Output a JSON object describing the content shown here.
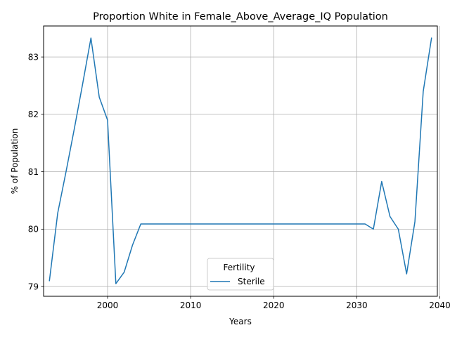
{
  "chart_data": {
    "type": "line",
    "title": "Proportion White in Female_Above_Average_IQ Population",
    "xlabel": "Years",
    "ylabel": "% of Population",
    "xlim": [
      1992.3,
      2039.7
    ],
    "ylim": [
      78.83,
      83.54
    ],
    "xticks": [
      2000,
      2010,
      2020,
      2030,
      2040
    ],
    "yticks": [
      79,
      80,
      81,
      82,
      83
    ],
    "grid": true,
    "legend": {
      "title": "Fertility",
      "placement": "lower-center"
    },
    "series": [
      {
        "name": "Sterile",
        "color": "#1f77b4",
        "x": [
          1993,
          1994,
          1995,
          1996,
          1997,
          1998,
          1999,
          2000,
          2001,
          2002,
          2003,
          2004,
          2005,
          2006,
          2007,
          2008,
          2009,
          2010,
          2011,
          2012,
          2013,
          2014,
          2015,
          2016,
          2017,
          2018,
          2019,
          2020,
          2021,
          2022,
          2023,
          2024,
          2025,
          2026,
          2027,
          2028,
          2029,
          2030,
          2031,
          2032,
          2033,
          2034,
          2035,
          2036,
          2037,
          2038,
          2039
        ],
        "y": [
          79.1,
          80.28,
          81.0,
          81.75,
          82.53,
          83.33,
          82.3,
          81.9,
          79.05,
          79.25,
          79.72,
          80.09,
          80.09,
          80.09,
          80.09,
          80.09,
          80.09,
          80.09,
          80.09,
          80.09,
          80.09,
          80.09,
          80.09,
          80.09,
          80.09,
          80.09,
          80.09,
          80.09,
          80.09,
          80.09,
          80.09,
          80.09,
          80.09,
          80.09,
          80.09,
          80.09,
          80.09,
          80.09,
          80.09,
          80.0,
          80.83,
          80.22,
          80.0,
          79.22,
          80.13,
          82.4,
          83.33
        ]
      }
    ]
  }
}
